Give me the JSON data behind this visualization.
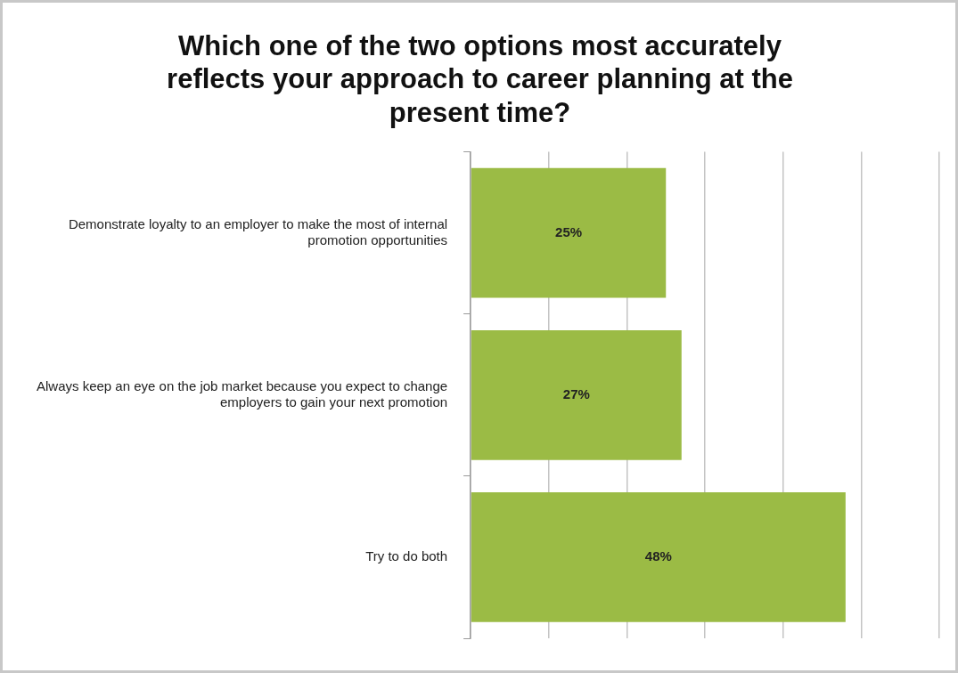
{
  "chart_data": {
    "type": "bar",
    "orientation": "horizontal",
    "title": "Which one of the two options most accurately reflects your approach to career planning at the present time?",
    "categories": [
      "Demonstrate loyalty to an employer to make the most of internal promotion opportunities",
      "Always keep an eye on the job market because you expect to change employers to gain your next promotion",
      "Try to do both"
    ],
    "values": [
      25,
      27,
      48
    ],
    "value_labels": [
      "25%",
      "27%",
      "48%"
    ],
    "color": "#9bbb45",
    "xlim": [
      0,
      60
    ],
    "tick_labels": "y",
    "grid": "x",
    "legend": false
  }
}
